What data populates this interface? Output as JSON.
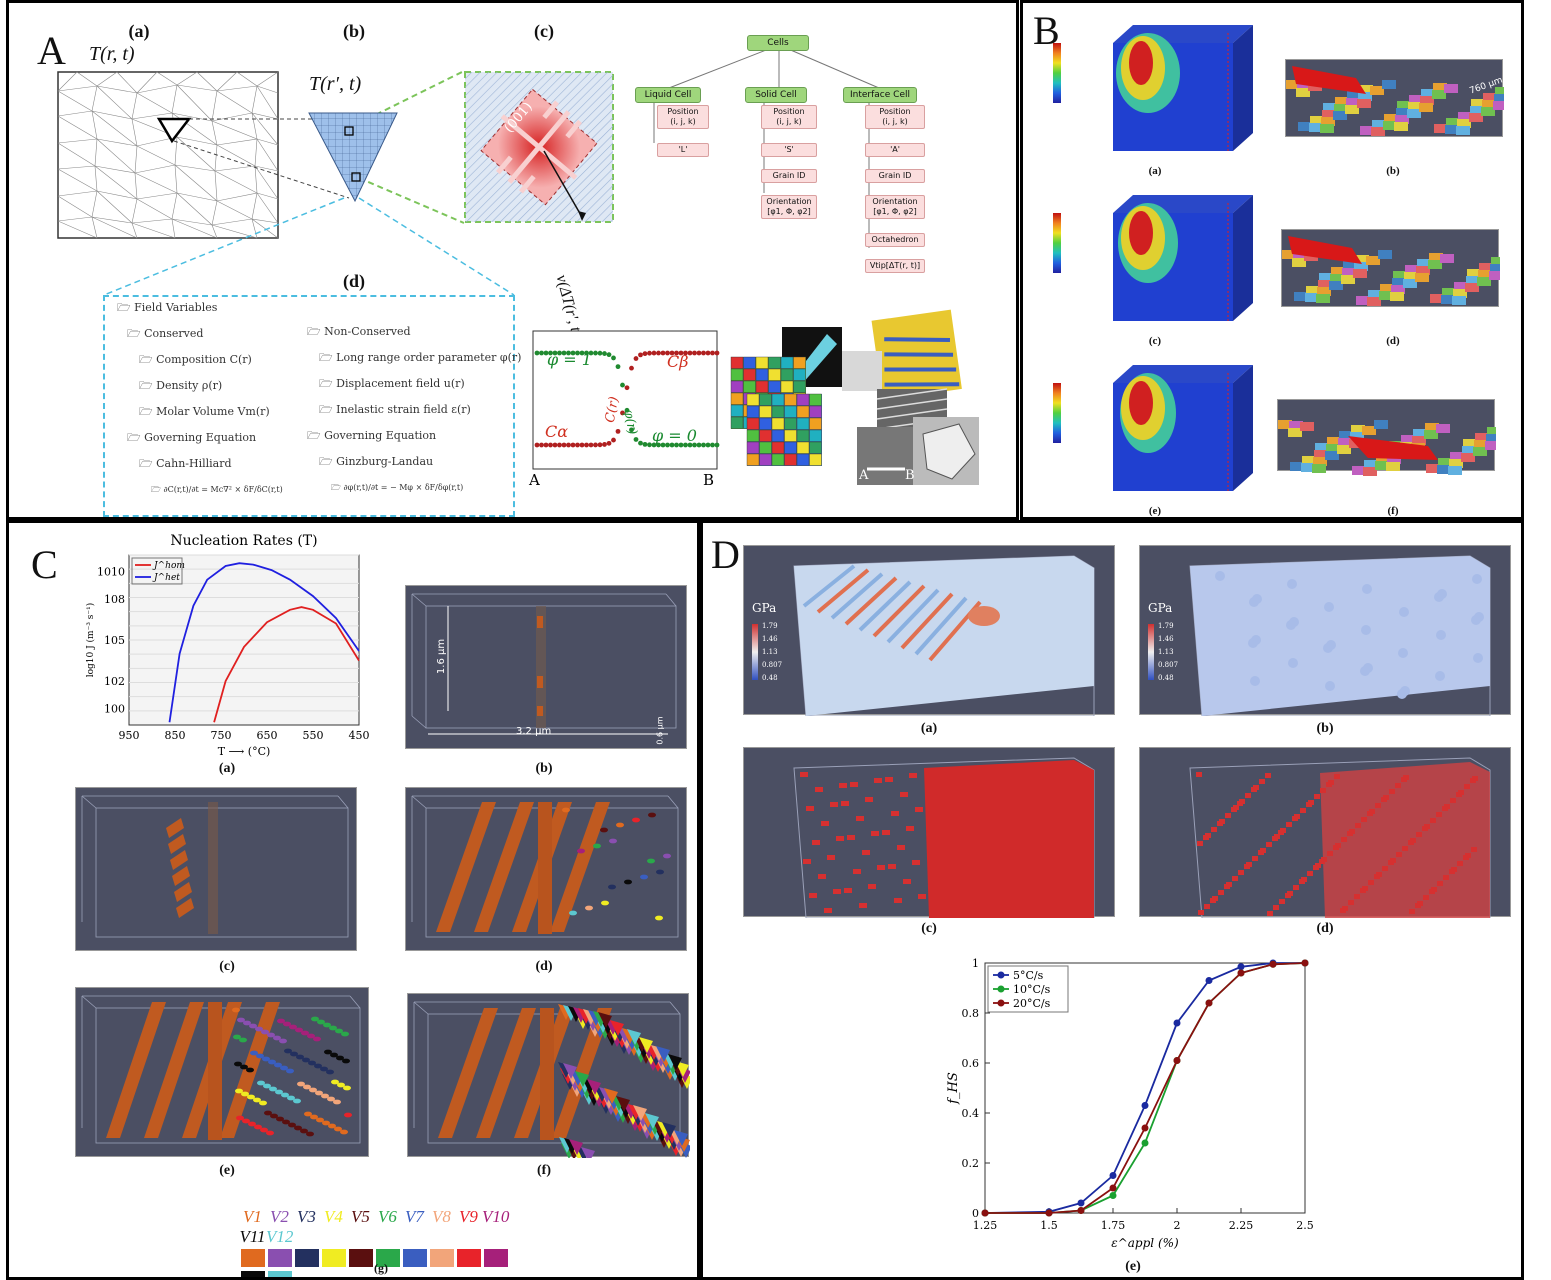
{
  "panelA": {
    "label": "A",
    "sub_a": "(a)",
    "sub_b": "(b)",
    "sub_c": "(c)",
    "sub_d": "(d)",
    "T_a": "T(r, t)",
    "T_b": "T(r′, t)",
    "velocity": "v(ΔT(r′, t))",
    "cells_root": "Cells",
    "liquid_cell": "Liquid Cell",
    "solid_cell": "Solid Cell",
    "interface_cell": "Interface Cell",
    "liquid_items": [
      "Position\n(i, j, k)",
      "'L'"
    ],
    "solid_items": [
      "Position\n(i, j, k)",
      "'S'",
      "Grain ID",
      "Orientation\n[φ1, Φ, φ2]"
    ],
    "interface_items": [
      "Position\n(i, j, k)",
      "'A'",
      "Grain ID",
      "Orientation\n[φ1, Φ, φ2]",
      "Octahedron",
      "Vtip[ΔT(r, t)]"
    ],
    "crystal_label": "(001)",
    "tree_left": [
      "Field Variables",
      "Conserved",
      "Composition C(r)",
      "Density ρ(r)",
      "Molar Volume Vm(r)",
      "Governing Equation",
      "Cahn-Hilliard",
      "∂C(r,t)/∂t = Mc∇² × δF/δC(r,t)"
    ],
    "tree_right": [
      "Non-Conserved",
      "Long range order parameter φ(r)",
      "Displacement field u(r)",
      "Inelastic strain field ε(r)",
      "Governing Equation",
      "Ginzburg-Landau",
      "∂φ(r,t)/∂t = − Mφ × δF/δφ(r,t)"
    ],
    "profile": {
      "phi1": "φ = 1",
      "phi0": "φ = 0",
      "Ca": "Cα",
      "Cb": "Cβ",
      "Cr": "C(r)",
      "phir": "φ(r)",
      "A": "A",
      "B": "B"
    },
    "micrograph_A": "A",
    "micrograph_B": "B"
  },
  "panelB": {
    "label": "B",
    "subs": [
      "(a)",
      "(b)",
      "(c)",
      "(d)",
      "(e)",
      "(f)"
    ],
    "size_label": "760 μm",
    "colorbar_colors": [
      "#c01010",
      "#f08020",
      "#f0e020",
      "#50d040",
      "#20c0c0",
      "#2060e0",
      "#2020a0"
    ]
  },
  "panelC": {
    "label": "C",
    "chart_title": "Nucleation Rates (T)",
    "subs": [
      "(a)",
      "(b)",
      "(c)",
      "(d)",
      "(e)",
      "(f)",
      "(g)"
    ],
    "dim_h": "1.6 μm",
    "dim_w": "3.2 μm",
    "dim_d": "0.6 μm",
    "variants": [
      "V1",
      "V2",
      "V3",
      "V4",
      "V5",
      "V6",
      "V7",
      "V8",
      "V9",
      "V10",
      "V11",
      "V12"
    ],
    "variant_colors": [
      "#e06a1f",
      "#8a4fb0",
      "#23305f",
      "#f0ec22",
      "#5a0f0f",
      "#2aa84a",
      "#3a5ec0",
      "#f2a57a",
      "#e8232a",
      "#a6207a",
      "#0a0a0a",
      "#5cc8d0"
    ]
  },
  "panelD": {
    "label": "D",
    "subs": [
      "(a)",
      "(b)",
      "(c)",
      "(d)",
      "(e)"
    ],
    "gpa": "GPa",
    "gpa_ticks": [
      "1.79",
      "1.46",
      "1.13",
      "0.807",
      "0.48"
    ]
  },
  "chart_data": [
    {
      "type": "line",
      "title": "Nucleation Rates (T)",
      "xlabel": "T ⟶ (°C)",
      "ylabel": "log10 J (m⁻³ s⁻¹)",
      "x_ticks": [
        950,
        850,
        750,
        650,
        550,
        450
      ],
      "y_ticks": [
        "10^0",
        "10^2",
        "10^5",
        "10^8",
        "10^10"
      ],
      "xlim": [
        950,
        450
      ],
      "series": [
        {
          "name": "J^hom",
          "color": "#e02020",
          "x": [
            765,
            740,
            700,
            650,
            600,
            575,
            550,
            500,
            450
          ],
          "y": [
            -1,
            2,
            4.5,
            6.3,
            7.2,
            7.4,
            7.2,
            6.2,
            3.5
          ]
        },
        {
          "name": "J^het",
          "color": "#2020e0",
          "x": [
            862,
            840,
            810,
            780,
            740,
            710,
            680,
            640,
            600,
            550,
            500,
            450
          ],
          "y": [
            -1,
            4,
            7.5,
            9.4,
            10.4,
            10.6,
            10.5,
            10.1,
            9.4,
            8.2,
            6.6,
            4.2
          ]
        }
      ]
    },
    {
      "type": "line",
      "xlabel": "ε^appl (%)",
      "ylabel": "f_HS",
      "x_ticks": [
        1.25,
        1.5,
        1.75,
        2,
        2.25,
        2.5
      ],
      "y_ticks": [
        0,
        0.2,
        0.4,
        0.6,
        0.8,
        1
      ],
      "xlim": [
        1.25,
        2.5
      ],
      "ylim": [
        0,
        1
      ],
      "legend": "top-left",
      "series": [
        {
          "name": "5°C/s",
          "color": "#1a2aa0",
          "x": [
            1.25,
            1.5,
            1.625,
            1.75,
            1.875,
            2.0,
            2.125,
            2.25,
            2.375,
            2.5
          ],
          "y": [
            0,
            0.005,
            0.04,
            0.15,
            0.43,
            0.76,
            0.93,
            0.985,
            1.0,
            1.0
          ]
        },
        {
          "name": "10°C/s",
          "color": "#1aa030",
          "x": [
            1.25,
            1.5,
            1.625,
            1.75,
            1.875,
            2.0,
            2.125,
            2.25,
            2.375,
            2.5
          ],
          "y": [
            0,
            0.0,
            0.01,
            0.07,
            0.28,
            0.61,
            0.84,
            0.96,
            0.995,
            1.0
          ]
        },
        {
          "name": "20°C/s",
          "color": "#8a1010",
          "x": [
            1.25,
            1.5,
            1.625,
            1.75,
            1.875,
            2.0,
            2.125,
            2.25,
            2.375,
            2.5
          ],
          "y": [
            0,
            0.0,
            0.01,
            0.1,
            0.34,
            0.61,
            0.84,
            0.96,
            0.995,
            1.0
          ]
        }
      ]
    }
  ]
}
